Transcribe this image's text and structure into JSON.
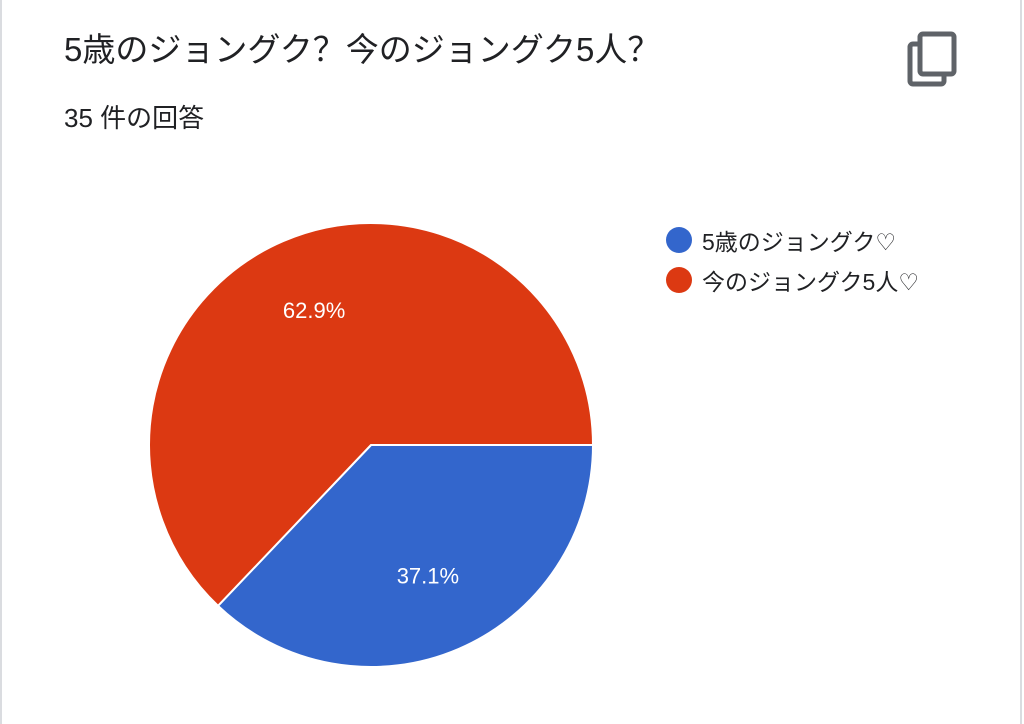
{
  "question": {
    "title": "5歳のジョングク？今のジョングク5人？",
    "response_count": "35 件の回答"
  },
  "toolbar": {
    "copy_icon": "copy-icon"
  },
  "chart_data": {
    "type": "pie",
    "slices": [
      {
        "label": "5歳のジョングク♡",
        "value": 37.1,
        "display": "37.1%",
        "color": "#3366cc"
      },
      {
        "label": "今のジョングク5人♡",
        "value": 62.9,
        "display": "62.9%",
        "color": "#dc3912"
      }
    ],
    "legend_position": "right"
  }
}
